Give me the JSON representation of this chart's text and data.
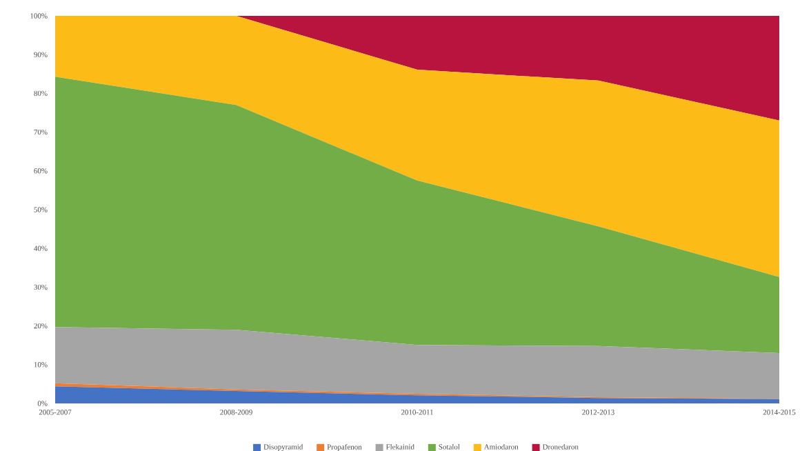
{
  "chart_data": {
    "type": "area",
    "stacked": true,
    "categories": [
      "2005-2007",
      "2008-2009",
      "2010-2011",
      "2012-2013",
      "2014-2015"
    ],
    "series": [
      {
        "name": "Disopyramid",
        "color": "#4472c4",
        "values": [
          4.4,
          3.2,
          2.1,
          1.4,
          1.1
        ]
      },
      {
        "name": "Propafenon",
        "color": "#ed7d31",
        "values": [
          0.8,
          0.4,
          0.4,
          0.2,
          0.1
        ]
      },
      {
        "name": "Flekainid",
        "color": "#a5a5a5",
        "values": [
          14.5,
          15.4,
          12.6,
          13.2,
          11.8
        ]
      },
      {
        "name": "Sotalol",
        "color": "#72ad47",
        "values": [
          64.6,
          58.0,
          42.4,
          30.9,
          19.6
        ]
      },
      {
        "name": "Amiodaron",
        "color": "#fcbb16",
        "values": [
          15.7,
          23.0,
          28.6,
          37.6,
          40.4
        ]
      },
      {
        "name": "Dronedaron",
        "color": "#b8143e",
        "values": [
          0,
          0,
          13.9,
          16.7,
          27.0
        ]
      }
    ],
    "ylim": [
      0,
      100
    ],
    "yticks": [
      {
        "value": 0,
        "label": "0%"
      },
      {
        "value": 10,
        "label": "10%"
      },
      {
        "value": 20,
        "label": "20%"
      },
      {
        "value": 30,
        "label": "30%"
      },
      {
        "value": 40,
        "label": "40%"
      },
      {
        "value": 50,
        "label": "50%"
      },
      {
        "value": 60,
        "label": "60%"
      },
      {
        "value": 70,
        "label": "70%"
      },
      {
        "value": 80,
        "label": "80%"
      },
      {
        "value": 90,
        "label": "90%"
      },
      {
        "value": 100,
        "label": "100%"
      }
    ],
    "grid": false,
    "legend": "bottom"
  }
}
